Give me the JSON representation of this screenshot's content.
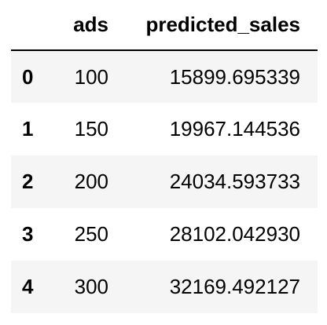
{
  "table": {
    "columns": {
      "index": "",
      "ads": "ads",
      "predicted_sales": "predicted_sales"
    },
    "rows": [
      {
        "index": "0",
        "ads": "100",
        "predicted_sales": "15899.695339"
      },
      {
        "index": "1",
        "ads": "150",
        "predicted_sales": "19967.144536"
      },
      {
        "index": "2",
        "ads": "200",
        "predicted_sales": "24034.593733"
      },
      {
        "index": "3",
        "ads": "250",
        "predicted_sales": "28102.042930"
      },
      {
        "index": "4",
        "ads": "300",
        "predicted_sales": "32169.492127"
      }
    ],
    "colors": {
      "striped_row": "#f5f5f5",
      "plain_row": "#ffffff",
      "text": "#000000",
      "header_rule": "#000000"
    }
  }
}
